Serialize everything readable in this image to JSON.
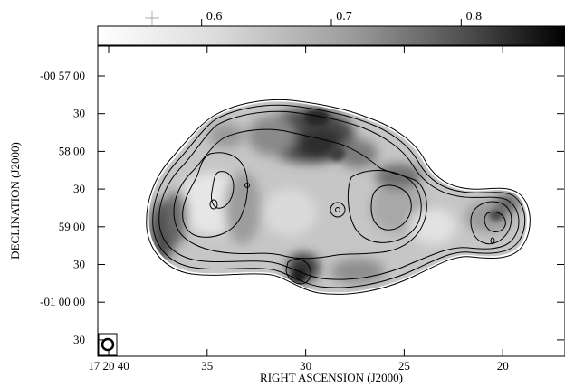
{
  "colorbar": {
    "tick_labels": [
      "0.6",
      "0.7",
      "0.8"
    ],
    "tick_values": [
      0.6,
      0.7,
      0.8
    ],
    "range": [
      0.52,
      0.88
    ]
  },
  "axes": {
    "xlabel": "RIGHT ASCENSION (J2000)",
    "ylabel": "DECLINATION (J2000)",
    "x_ticks": [
      {
        "label": "17 20 40",
        "value": "17 20 40"
      },
      {
        "label": "35",
        "value": "17 20 35"
      },
      {
        "label": "30",
        "value": "17 20 30"
      },
      {
        "label": "25",
        "value": "17 20 25"
      },
      {
        "label": "20",
        "value": "17 20 20"
      }
    ],
    "y_ticks": [
      {
        "label": "-00 57 00",
        "value": "-00 57 00"
      },
      {
        "label": "30",
        "value": "-00 57 30"
      },
      {
        "label": "58 00",
        "value": "-00 58 00"
      },
      {
        "label": "30",
        "value": "-00 58 30"
      },
      {
        "label": "59 00",
        "value": "-00 59 00"
      },
      {
        "label": "30",
        "value": "-00 59 30"
      },
      {
        "label": "-01 00 00",
        "value": "-01 00 00"
      },
      {
        "label": "30",
        "value": "-01 00 30"
      }
    ]
  }
}
